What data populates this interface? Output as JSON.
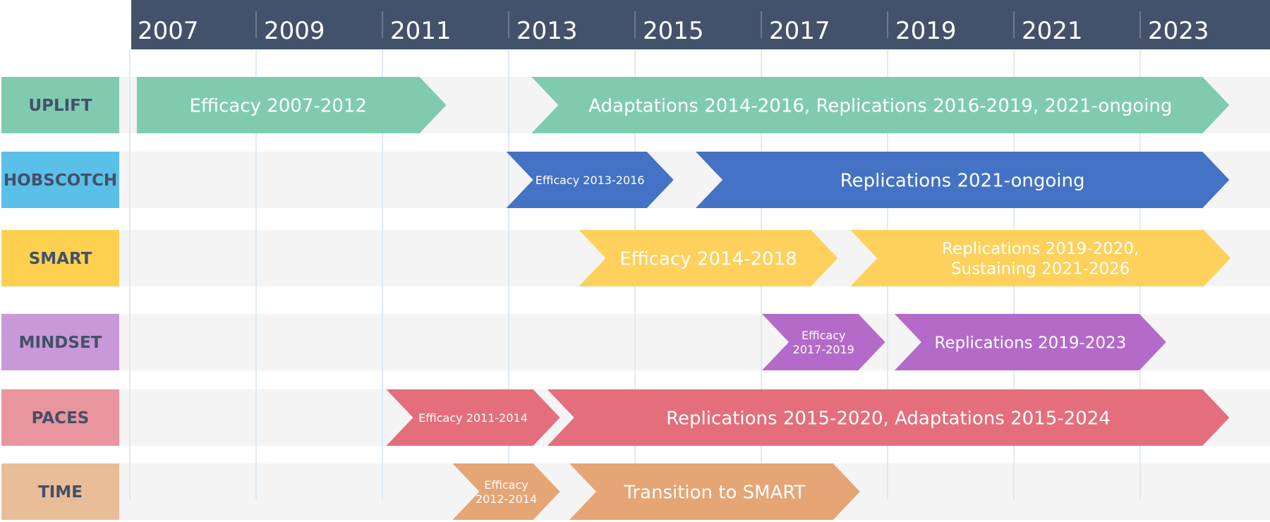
{
  "chart_data": {
    "type": "timeline",
    "x_axis": {
      "ticks": [
        "2007",
        "2009",
        "2011",
        "2013",
        "2015",
        "2017",
        "2019",
        "2021",
        "2023"
      ],
      "range": [
        2007,
        2024.4
      ],
      "header_color": "#44516a"
    },
    "rows": [
      {
        "label": "UPLIFT",
        "color": "#80cbb0",
        "phases": [
          {
            "label": [
              "Efficacy 2007-2012"
            ],
            "start": 2007.1,
            "end": 2012.0,
            "color": "#80cbb0"
          },
          {
            "label": [
              "Adaptations 2014-2016, Replications 2016-2019, 2021-ongoing"
            ],
            "start": 2013.35,
            "end": 2024.4,
            "color": "#80cbb0"
          }
        ]
      },
      {
        "label": "HOBSCOTCH",
        "color": "#5bc0e8",
        "phases": [
          {
            "label": [
              "Efficacy 2013-2016"
            ],
            "start": 2012.95,
            "end": 2015.6,
            "color": "#4472c4"
          },
          {
            "label": [
              "Replications 2021-ongoing"
            ],
            "start": 2015.95,
            "end": 2024.4,
            "color": "#4472c4"
          }
        ]
      },
      {
        "label": "SMART",
        "color": "#fdd14f",
        "phases": [
          {
            "label": [
              "Efficacy 2014-2018"
            ],
            "start": 2014.1,
            "end": 2018.2,
            "color": "#fdd15c"
          },
          {
            "label": [
              "Replications 2019-2020,",
              "Sustaining 2021-2026"
            ],
            "start": 2018.4,
            "end": 2024.42,
            "color": "#fdd15c"
          }
        ]
      },
      {
        "label": "MINDSET",
        "color": "#c898d8",
        "phases": [
          {
            "label": [
              "Efficacy",
              "2017-2019"
            ],
            "start": 2017.0,
            "end": 2018.95,
            "color": "#b36ac8"
          },
          {
            "label": [
              "Replications 2019-2023"
            ],
            "start": 2019.1,
            "end": 2023.4,
            "color": "#b36ac8"
          }
        ]
      },
      {
        "label": "PACES",
        "color": "#e9959d",
        "phases": [
          {
            "label": [
              "Efficacy 2011-2014"
            ],
            "start": 2011.05,
            "end": 2013.8,
            "color": "#e46e7c"
          },
          {
            "label": [
              "Replications 2015-2020, Adaptations 2015-2024"
            ],
            "start": 2013.6,
            "end": 2024.4,
            "color": "#e46e7c"
          }
        ]
      },
      {
        "label": "TIME",
        "color": "#e9bd98",
        "phases": [
          {
            "label": [
              "Efficacy",
              "2012-2014"
            ],
            "start": 2012.1,
            "end": 2013.8,
            "color": "#e5a574"
          },
          {
            "label": [
              "Transition to SMART"
            ],
            "start": 2013.95,
            "end": 2018.55,
            "color": "#e5a574"
          }
        ]
      }
    ],
    "band_color": "#f4f4f4",
    "grid": true,
    "grid_color": "#d6e4f0"
  }
}
